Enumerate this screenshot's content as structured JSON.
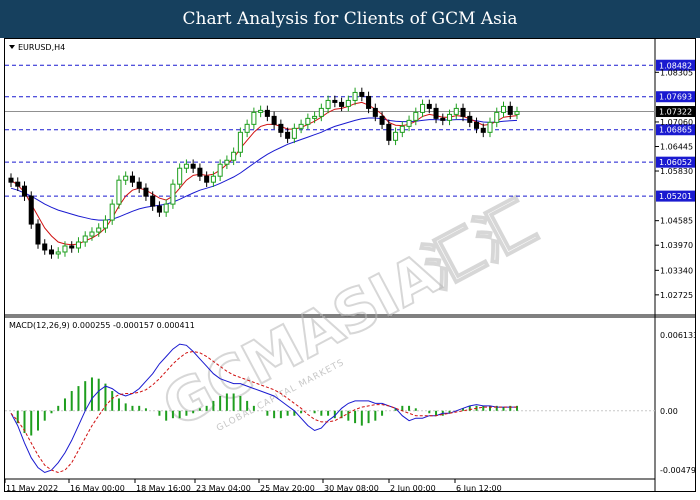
{
  "banner": {
    "title": "Chart Analysis for Clients of GCM Asia"
  },
  "symbol_label": "EURUSD,H4",
  "macd_label": "MACD(12,26,9) 0.000255 -0.000157 0.000411",
  "watermark": {
    "main": "GCMASIA",
    "chinese": "汇汇",
    "sub": "GLOBAL CAPITAL MARKETS"
  },
  "colors": {
    "banner": "#16405e",
    "bull": "#1e9e1e",
    "bear": "#000000",
    "ma_fast": "#d01010",
    "ma_slow": "#1a1ad0",
    "level_line": "#1a1ad0",
    "tag_bg": "#1a1ad0",
    "current_tag_bg": "#000000"
  },
  "price_axis": {
    "min": 1.0232,
    "max": 1.0904,
    "labels": [
      "1.08305",
      "1.07060",
      "1.06445",
      "1.05830",
      "1.04585",
      "1.03970",
      "1.03340",
      "1.02725"
    ]
  },
  "levels": [
    "1.08482",
    "1.07693",
    "1.06865",
    "1.06052",
    "1.05201"
  ],
  "current_price": "1.07322",
  "macd_axis": {
    "min": -0.0052,
    "max": 0.0063,
    "labels": [
      "0.006133",
      "0.00",
      "-0.004791"
    ]
  },
  "time_labels": [
    "11 May 2022",
    "16 May 00:00",
    "18 May 16:00",
    "23 May 04:00",
    "25 May 20:00",
    "30 May 08:00",
    "2 Jun 00:00",
    "6 Jun 12:00"
  ],
  "chart_data": [
    {
      "type": "candlestick",
      "title": "EURUSD,H4",
      "close": [
        1.0555,
        1.0545,
        1.052,
        1.045,
        1.04,
        1.0385,
        1.0375,
        1.038,
        1.0395,
        1.039,
        1.0405,
        1.042,
        1.043,
        1.044,
        1.046,
        1.05,
        1.056,
        1.057,
        1.0555,
        1.054,
        1.052,
        1.0495,
        1.048,
        1.05,
        1.055,
        1.059,
        1.06,
        1.059,
        1.057,
        1.0555,
        1.057,
        1.06,
        1.061,
        1.063,
        1.068,
        1.07,
        1.073,
        1.0735,
        1.072,
        1.07,
        1.068,
        1.0665,
        1.069,
        1.07,
        1.0715,
        1.072,
        1.074,
        1.076,
        1.0755,
        1.0745,
        1.076,
        1.078,
        1.077,
        1.074,
        1.072,
        1.07,
        1.066,
        1.068,
        1.0695,
        1.071,
        1.073,
        1.075,
        1.074,
        1.0715,
        1.071,
        1.0725,
        1.074,
        1.072,
        1.0705,
        1.069,
        1.068,
        1.0705,
        1.073,
        1.0745,
        1.0725,
        1.0732
      ],
      "ma_fast": [
        1.056,
        1.0548,
        1.053,
        1.05,
        1.047,
        1.044,
        1.042,
        1.0405,
        1.04,
        1.0398,
        1.04,
        1.0408,
        1.0415,
        1.0425,
        1.044,
        1.0465,
        1.0495,
        1.052,
        1.0535,
        1.054,
        1.0535,
        1.0525,
        1.0515,
        1.051,
        1.052,
        1.054,
        1.056,
        1.0572,
        1.0575,
        1.0572,
        1.0575,
        1.0585,
        1.06,
        1.0615,
        1.064,
        1.066,
        1.068,
        1.0695,
        1.07,
        1.07,
        1.0695,
        1.0688,
        1.0688,
        1.0692,
        1.07,
        1.0708,
        1.0718,
        1.073,
        1.0738,
        1.074,
        1.0745,
        1.0752,
        1.0755,
        1.0748,
        1.0738,
        1.0725,
        1.0705,
        1.0698,
        1.0697,
        1.07,
        1.0708,
        1.072,
        1.0725,
        1.0722,
        1.0718,
        1.0718,
        1.0722,
        1.072,
        1.0714,
        1.0706,
        1.0698,
        1.07,
        1.0708,
        1.0718,
        1.072,
        1.0722
      ],
      "ma_slow": [
        1.054,
        1.0535,
        1.0528,
        1.052,
        1.051,
        1.05,
        1.0492,
        1.0485,
        1.048,
        1.0475,
        1.047,
        1.0466,
        1.0462,
        1.046,
        1.046,
        1.0462,
        1.0468,
        1.0475,
        1.0482,
        1.0488,
        1.0492,
        1.0495,
        1.0497,
        1.05,
        1.0505,
        1.0512,
        1.052,
        1.0528,
        1.0535,
        1.054,
        1.0545,
        1.0552,
        1.056,
        1.0568,
        1.0578,
        1.059,
        1.0602,
        1.0614,
        1.0625,
        1.0634,
        1.0642,
        1.065,
        1.0656,
        1.0662,
        1.0668,
        1.0674,
        1.068,
        1.0688,
        1.0695,
        1.07,
        1.0705,
        1.071,
        1.0714,
        1.0716,
        1.0716,
        1.0714,
        1.071,
        1.0708,
        1.0707,
        1.0707,
        1.0708,
        1.071,
        1.0712,
        1.0712,
        1.0711,
        1.0711,
        1.0712,
        1.0712,
        1.0711,
        1.0709,
        1.0706,
        1.0705,
        1.0706,
        1.0708,
        1.0709,
        1.071
      ],
      "ylim": [
        1.0232,
        1.0904
      ]
    },
    {
      "type": "bar",
      "title": "MACD(12,26,9) 0.000255 -0.000157 0.000411",
      "histogram": [
        0.0,
        -0.001,
        -0.0018,
        -0.002,
        -0.0016,
        -0.0008,
        -0.0002,
        0.0004,
        0.001,
        0.0016,
        0.002,
        0.0024,
        0.0027,
        0.0026,
        0.0022,
        0.0016,
        0.001,
        0.0006,
        0.0004,
        0.0004,
        0.0002,
        0.0,
        -0.0004,
        -0.0008,
        -0.0006,
        -0.0006,
        -0.0004,
        -0.0002,
        0.0002,
        0.0004,
        0.0008,
        0.0012,
        0.0014,
        0.0014,
        0.0012,
        0.0008,
        0.0004,
        0.0,
        -0.0004,
        -0.0006,
        -0.0006,
        -0.0004,
        -0.0004,
        -0.0002,
        0.0,
        -0.0002,
        -0.0004,
        -0.0004,
        -0.0006,
        -0.0006,
        -0.0008,
        -0.001,
        -0.0012,
        -0.001,
        -0.0008,
        -0.0004,
        0.0,
        0.0002,
        0.0004,
        0.0004,
        0.0002,
        0.0,
        -0.0002,
        -0.0004,
        -0.0004,
        -0.0002,
        0.0,
        0.0002,
        0.0004,
        0.0004,
        0.0004,
        0.0004,
        0.0004,
        0.0003,
        0.0004,
        0.0004
      ],
      "macd_line": [
        -0.0002,
        -0.0012,
        -0.0026,
        -0.0038,
        -0.0046,
        -0.005,
        -0.0048,
        -0.0042,
        -0.0034,
        -0.0024,
        -0.0012,
        0.0,
        0.001,
        0.0016,
        0.002,
        0.0018,
        0.0014,
        0.0012,
        0.0014,
        0.0018,
        0.0024,
        0.003,
        0.0038,
        0.0044,
        0.005,
        0.0054,
        0.0053,
        0.0048,
        0.0042,
        0.0036,
        0.003,
        0.0026,
        0.0024,
        0.0022,
        0.0022,
        0.002,
        0.0018,
        0.0016,
        0.0014,
        0.0012,
        0.0008,
        0.0004,
        0.0,
        -0.0006,
        -0.0012,
        -0.0016,
        -0.0014,
        -0.0008,
        -0.0004,
        0.0002,
        0.0006,
        0.0008,
        0.0008,
        0.0008,
        0.0006,
        0.0006,
        0.0004,
        0.0002,
        -0.0004,
        -0.0008,
        -0.0006,
        -0.0006,
        -0.0004,
        -0.0004,
        -0.0002,
        -0.0002,
        0.0,
        0.0002,
        0.0004,
        0.0005,
        0.0004,
        0.0004,
        0.0003,
        0.0003,
        0.0003,
        0.0003
      ],
      "signal_line": [
        -0.0002,
        -0.0008,
        -0.0016,
        -0.0026,
        -0.0036,
        -0.0044,
        -0.0048,
        -0.005,
        -0.0048,
        -0.0042,
        -0.0032,
        -0.0022,
        -0.0012,
        -0.0004,
        0.0004,
        0.001,
        0.0013,
        0.0014,
        0.0014,
        0.0015,
        0.0017,
        0.0021,
        0.0026,
        0.0032,
        0.0038,
        0.0043,
        0.0047,
        0.0048,
        0.0047,
        0.0044,
        0.004,
        0.0036,
        0.0032,
        0.0029,
        0.0027,
        0.0025,
        0.0023,
        0.0021,
        0.0019,
        0.0017,
        0.0014,
        0.001,
        0.0006,
        0.0002,
        -0.0003,
        -0.0007,
        -0.0009,
        -0.0009,
        -0.0008,
        -0.0005,
        -0.0002,
        0.0001,
        0.0003,
        0.0004,
        0.0005,
        0.0005,
        0.0004,
        0.0002,
        0.0,
        -0.0002,
        -0.0004,
        -0.0004,
        -0.0004,
        -0.0004,
        -0.0003,
        -0.0002,
        -0.0001,
        0.0,
        0.0001,
        0.0002,
        0.0003,
        0.0003,
        0.0003,
        0.0003,
        0.0003,
        0.0003
      ],
      "ylim": [
        -0.0052,
        0.0063
      ]
    }
  ]
}
